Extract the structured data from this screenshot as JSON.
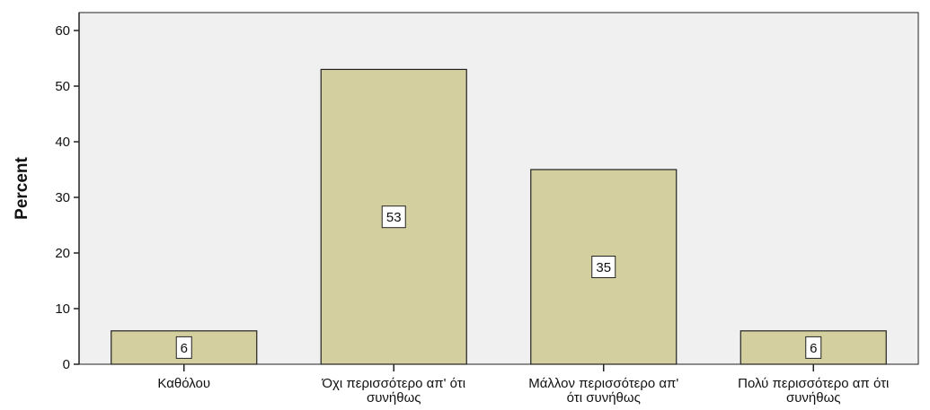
{
  "chart_data": {
    "type": "bar",
    "categories": [
      [
        "Καθόλου"
      ],
      [
        "Όχι περισσότερο απ' ότι",
        "συνήθως"
      ],
      [
        "Μάλλον περισσότερο απ'",
        "ότι συνήθως"
      ],
      [
        "Πολύ περισσότερο απ ότι",
        "συνήθως"
      ]
    ],
    "values": [
      6,
      53,
      35,
      6
    ],
    "data_labels": [
      "6",
      "53",
      "35",
      "6"
    ],
    "title": "",
    "xlabel": "",
    "ylabel": "Percent",
    "ylim": [
      0,
      60
    ],
    "yticks": [
      0,
      10,
      20,
      30,
      40,
      50,
      60
    ],
    "grid": false,
    "colors": {
      "plot_background": "#f0f0f0",
      "bar_fill": "#d4cf9e",
      "bar_stroke": "#222222",
      "axis": "#222222"
    }
  }
}
